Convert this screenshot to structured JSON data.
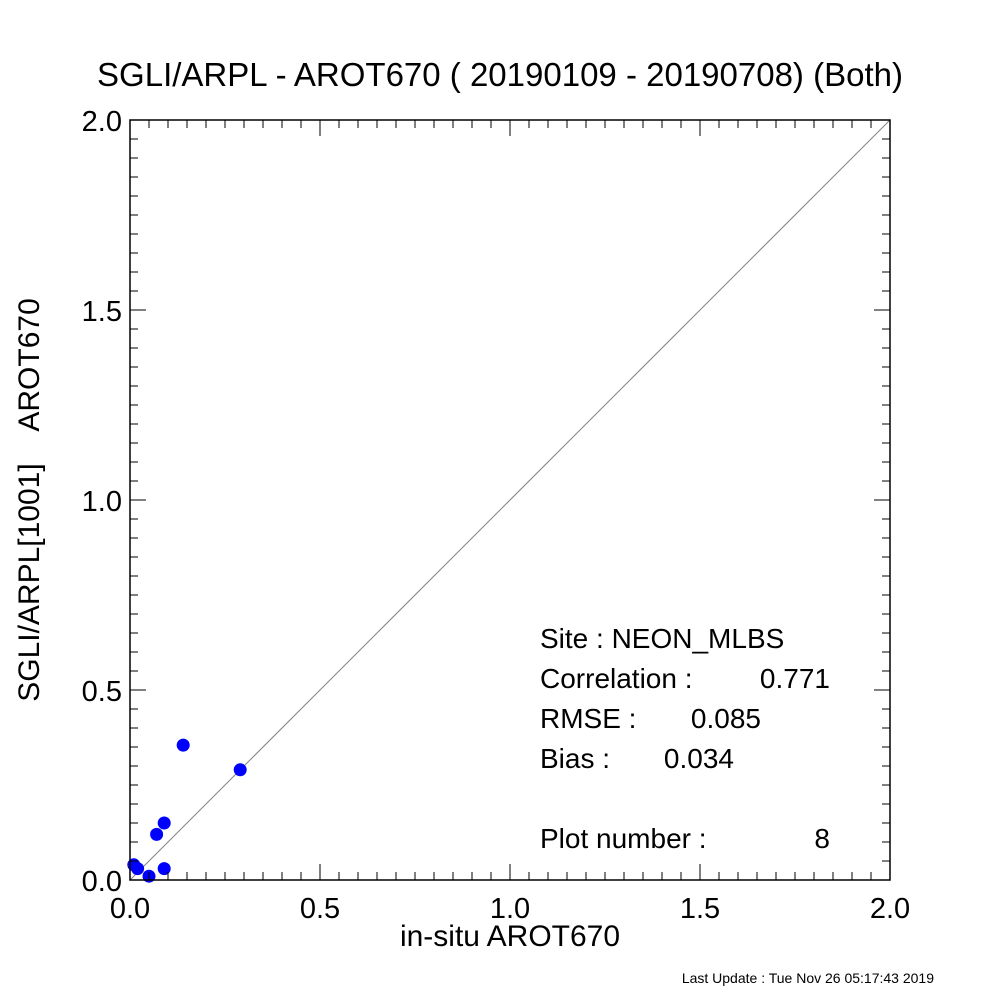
{
  "header": {
    "title": "SGLI/ARPL - AROT670 ( 20190109 - 20190708) (Both)"
  },
  "footer": {
    "last_update": "Last Update : Tue Nov 26 05:17:43 2019"
  },
  "stats": {
    "site_label": "Site : NEON_MLBS",
    "correlation_label": "Correlation :",
    "correlation_value": "0.771",
    "rmse_label": "RMSE :",
    "rmse_value": "0.085",
    "bias_label": "Bias :",
    "bias_value": "0.034",
    "plot_number_label": "Plot number :",
    "plot_number_value": "8"
  },
  "chart_data": {
    "type": "scatter",
    "title": "SGLI/ARPL - AROT670 ( 20190109 - 20190708) (Both)",
    "xlabel": "in-situ AROT670",
    "ylabel": "SGLI/ARPL[1001]    AROT670",
    "xlim": [
      0.0,
      2.0
    ],
    "ylim": [
      0.0,
      2.0
    ],
    "x_ticks": [
      "0.0",
      "0.5",
      "1.0",
      "1.5",
      "2.0"
    ],
    "y_ticks": [
      "0.0",
      "0.5",
      "1.0",
      "1.5",
      "2.0"
    ],
    "grid": false,
    "reference_line": "1:1",
    "marker_color": "#0000ff",
    "line_color": "#808080",
    "series": [
      {
        "x": [
          0.01,
          0.02,
          0.05,
          0.07,
          0.09,
          0.09,
          0.14,
          0.29
        ],
        "y": [
          0.04,
          0.03,
          0.01,
          0.12,
          0.03,
          0.15,
          0.355,
          0.29
        ]
      }
    ]
  }
}
